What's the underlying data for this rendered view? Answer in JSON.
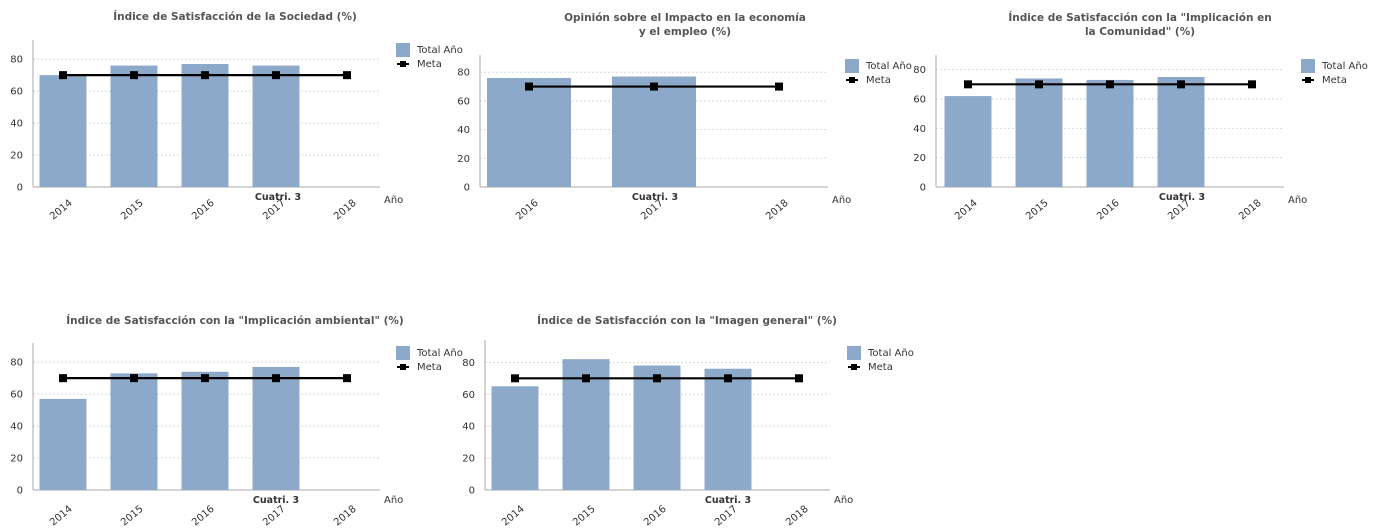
{
  "colors": {
    "bar": "#8DA9CA",
    "meta_line": "#000000"
  },
  "chart_data": [
    {
      "type": "bar",
      "title_lines": [
        "Índice de Satisfacción de la Sociedad (%)"
      ],
      "categories": [
        "2014",
        "2015",
        "2016",
        "2017",
        "2018"
      ],
      "series": [
        {
          "name": "Total Año",
          "kind": "bar",
          "values": [
            70,
            76,
            77,
            76,
            null
          ]
        },
        {
          "name": "Meta",
          "kind": "line",
          "values": [
            70,
            70,
            70,
            70,
            70
          ]
        }
      ],
      "xlabel": "Año",
      "annotation": "Cuatri. 3",
      "yticks": [
        0,
        20,
        40,
        60,
        80
      ],
      "ylim": [
        0,
        92
      ],
      "legend_position": "right",
      "grid": true
    },
    {
      "type": "bar",
      "title_lines": [
        "Opinión sobre el Impacto en la economía",
        "y el empleo (%)"
      ],
      "categories": [
        "2016",
        "2017",
        "2018"
      ],
      "series": [
        {
          "name": "Total Año",
          "kind": "bar",
          "values": [
            76,
            77,
            null
          ]
        },
        {
          "name": "Meta",
          "kind": "line",
          "values": [
            70,
            70,
            70
          ]
        }
      ],
      "xlabel": "Año",
      "annotation": "Cuatri. 3",
      "yticks": [
        0,
        20,
        40,
        60,
        80
      ],
      "ylim": [
        0,
        92
      ],
      "legend_position": "right",
      "grid": true
    },
    {
      "type": "bar",
      "title_lines": [
        "Índice de Satisfacción con la \"Implicación en",
        "la Comunidad\" (%)"
      ],
      "categories": [
        "2014",
        "2015",
        "2016",
        "2017",
        "2018"
      ],
      "series": [
        {
          "name": "Total Año",
          "kind": "bar",
          "values": [
            62,
            74,
            73,
            75,
            null
          ]
        },
        {
          "name": "Meta",
          "kind": "line",
          "values": [
            70,
            70,
            70,
            70,
            70
          ]
        }
      ],
      "xlabel": "Año",
      "annotation": "Cuatri. 3",
      "yticks": [
        0,
        20,
        40,
        60,
        80
      ],
      "ylim": [
        0,
        90
      ],
      "legend_position": "right",
      "grid": true
    },
    {
      "type": "bar",
      "title_lines": [
        "Índice de Satisfacción con la \"Implicación ambiental\" (%)"
      ],
      "categories": [
        "2014",
        "2015",
        "2016",
        "2017",
        "2018"
      ],
      "series": [
        {
          "name": "Total Año",
          "kind": "bar",
          "values": [
            57,
            73,
            74,
            77,
            null
          ]
        },
        {
          "name": "Meta",
          "kind": "line",
          "values": [
            70,
            70,
            70,
            70,
            70
          ]
        }
      ],
      "xlabel": "Año",
      "annotation": "Cuatri. 3",
      "yticks": [
        0,
        20,
        40,
        60,
        80
      ],
      "ylim": [
        0,
        92
      ],
      "legend_position": "right",
      "grid": true
    },
    {
      "type": "bar",
      "title_lines": [
        "Índice de Satisfacción con la \"Imagen general\" (%)"
      ],
      "categories": [
        "2014",
        "2015",
        "2016",
        "2017",
        "2018"
      ],
      "series": [
        {
          "name": "Total Año",
          "kind": "bar",
          "values": [
            65,
            82,
            78,
            76,
            null
          ]
        },
        {
          "name": "Meta",
          "kind": "line",
          "values": [
            70,
            70,
            70,
            70,
            70
          ]
        }
      ],
      "xlabel": "Año",
      "annotation": "Cuatri. 3",
      "yticks": [
        0,
        20,
        40,
        60,
        80
      ],
      "ylim": [
        0,
        94
      ],
      "legend_position": "right",
      "grid": true
    }
  ]
}
